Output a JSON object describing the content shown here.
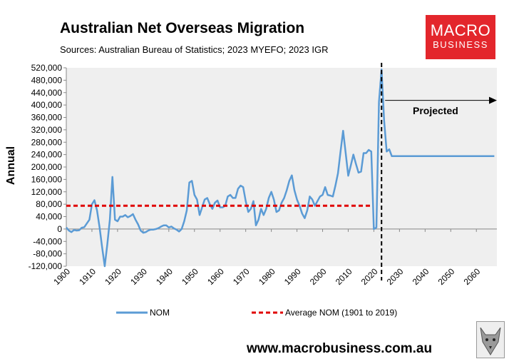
{
  "header": {
    "title": "Australian Net Overseas Migration",
    "subtitle": "Sources: Australian Bureau of Statistics; 2023 MYEFO; 2023 IGR"
  },
  "logo": {
    "line1": "MACRO",
    "line2": "BUSINESS"
  },
  "footer": {
    "website": "www.macrobusiness.com.au"
  },
  "icons": {
    "wolf": "wolf-logo-icon"
  },
  "colors": {
    "nom": "#5b9bd5",
    "average": "#e00000",
    "logo_bg": "#e3262c",
    "plot_bg": "#efefef"
  },
  "chart_data": {
    "type": "line",
    "title": "Australian Net Overseas Migration",
    "ylabel": "Annual",
    "xlabel": "",
    "xlim": [
      1900,
      2068
    ],
    "ylim": [
      -120000,
      520000
    ],
    "x_ticks": [
      1900,
      1910,
      1920,
      1930,
      1940,
      1950,
      1960,
      1970,
      1980,
      1990,
      2000,
      2010,
      2020,
      2030,
      2040,
      2050,
      2060
    ],
    "y_ticks": [
      -120000,
      -80000,
      -40000,
      0,
      40000,
      80000,
      120000,
      160000,
      200000,
      240000,
      280000,
      320000,
      360000,
      400000,
      440000,
      480000,
      520000
    ],
    "y_tick_labels": [
      "-120,000",
      "-80,000",
      "-40,000",
      "0",
      "40,000",
      "80,000",
      "120,000",
      "160,000",
      "200,000",
      "240,000",
      "280,000",
      "320,000",
      "360,000",
      "400,000",
      "440,000",
      "480,000",
      "520,000"
    ],
    "grid": false,
    "legend_position": "bottom",
    "series": [
      {
        "name": "NOM",
        "style": "solid",
        "color": "#5b9bd5",
        "x": [
          1900,
          1901,
          1902,
          1903,
          1904,
          1905,
          1906,
          1907,
          1908,
          1909,
          1910,
          1911,
          1912,
          1913,
          1914,
          1915,
          1916,
          1917,
          1918,
          1919,
          1920,
          1921,
          1922,
          1923,
          1924,
          1925,
          1926,
          1927,
          1928,
          1929,
          1930,
          1931,
          1932,
          1933,
          1934,
          1935,
          1936,
          1937,
          1938,
          1939,
          1940,
          1941,
          1942,
          1943,
          1944,
          1945,
          1946,
          1947,
          1948,
          1949,
          1950,
          1951,
          1952,
          1953,
          1954,
          1955,
          1956,
          1957,
          1958,
          1959,
          1960,
          1961,
          1962,
          1963,
          1964,
          1965,
          1966,
          1967,
          1968,
          1969,
          1970,
          1971,
          1972,
          1973,
          1974,
          1975,
          1976,
          1977,
          1978,
          1979,
          1980,
          1981,
          1982,
          1983,
          1984,
          1985,
          1986,
          1987,
          1988,
          1989,
          1990,
          1991,
          1992,
          1993,
          1994,
          1995,
          1996,
          1997,
          1998,
          1999,
          2000,
          2001,
          2002,
          2003,
          2004,
          2005,
          2006,
          2007,
          2008,
          2009,
          2010,
          2011,
          2012,
          2013,
          2014,
          2015,
          2016,
          2017,
          2018,
          2019,
          2020,
          2021,
          2022,
          2023,
          2024,
          2025,
          2026,
          2027,
          2030,
          2040,
          2050,
          2060,
          2067
        ],
        "y": [
          5000,
          -5000,
          -10000,
          -3000,
          -5000,
          -4000,
          4000,
          6000,
          18000,
          30000,
          80000,
          93000,
          60000,
          5000,
          -60000,
          -120000,
          -50000,
          30000,
          168000,
          30000,
          25000,
          40000,
          40000,
          45000,
          38000,
          42000,
          48000,
          30000,
          15000,
          -5000,
          -12000,
          -10000,
          -5000,
          -2000,
          -2000,
          0,
          3000,
          8000,
          12000,
          12000,
          5000,
          8000,
          2000,
          -2000,
          -8000,
          0,
          25000,
          60000,
          150000,
          155000,
          110000,
          95000,
          45000,
          70000,
          95000,
          100000,
          80000,
          65000,
          85000,
          92000,
          70000,
          70000,
          75000,
          105000,
          110000,
          100000,
          100000,
          130000,
          140000,
          135000,
          90000,
          55000,
          65000,
          90000,
          12000,
          30000,
          65000,
          45000,
          65000,
          100000,
          120000,
          95000,
          55000,
          60000,
          85000,
          100000,
          125000,
          155000,
          173000,
          125000,
          95000,
          75000,
          50000,
          35000,
          60000,
          105000,
          95000,
          75000,
          90000,
          105000,
          110000,
          135000,
          110000,
          108000,
          105000,
          140000,
          180000,
          250000,
          317000,
          245000,
          172000,
          205000,
          240000,
          210000,
          182000,
          185000,
          245000,
          245000,
          255000,
          250000,
          0,
          5000,
          410000,
          515000,
          350000,
          250000,
          257000,
          235000,
          235000,
          235000,
          235000,
          235000,
          235000
        ]
      },
      {
        "name": "Average NOM (1901 to 2019)",
        "style": "dashed",
        "color": "#e00000",
        "x": [
          1900,
          2019
        ],
        "y": [
          75000,
          75000
        ]
      }
    ],
    "annotations": [
      {
        "text": "Projected",
        "arrow_from": 2023,
        "arrow_to": 2068,
        "arrow_y": 415000,
        "divider_x": 2023
      }
    ]
  }
}
